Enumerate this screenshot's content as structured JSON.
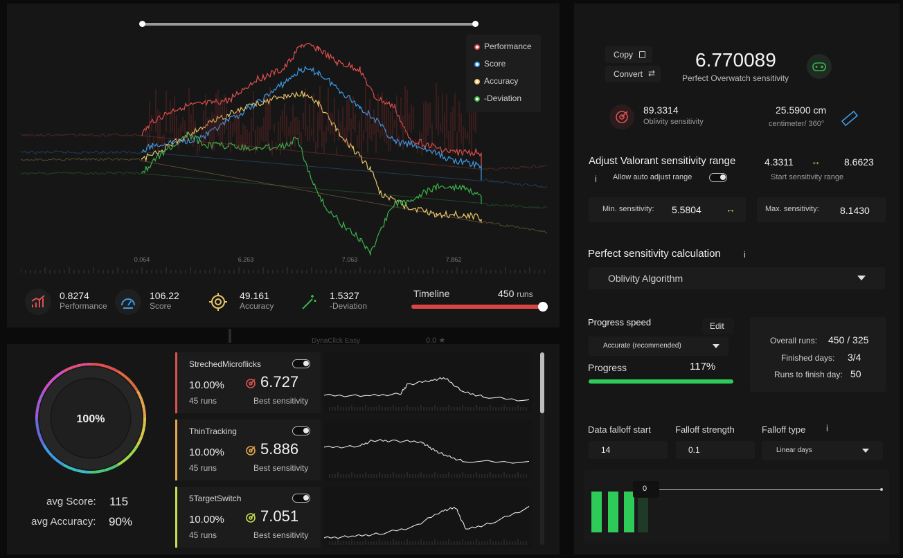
{
  "chart": {
    "legend": [
      {
        "label": "Performance",
        "color": "#e15050"
      },
      {
        "label": "Score",
        "color": "#3d9be6"
      },
      {
        "label": "Accuracy",
        "color": "#e8c56a"
      },
      {
        "label": "-Deviation",
        "color": "#3ab24a"
      }
    ],
    "x_ticks": [
      "0.064",
      "6.263",
      "7.063",
      "7.862"
    ]
  },
  "stats": [
    {
      "value": "0.8274",
      "label": "Performance",
      "icon": "bar-chart-icon",
      "color": "#e15050"
    },
    {
      "value": "106.22",
      "label": "Score",
      "icon": "gauge-icon",
      "color": "#3d9be6"
    },
    {
      "value": "49.161",
      "label": "Accuracy",
      "icon": "target-icon",
      "color": "#e8c56a"
    },
    {
      "value": "1.5327",
      "label": "-Deviation",
      "icon": "wand-icon",
      "color": "#3ab24a"
    }
  ],
  "timeline": {
    "label": "Timeline",
    "runs_value": "450",
    "runs_unit": "runs",
    "fill": 1.0
  },
  "ghost_row": {
    "label": "DynaClick Easy",
    "value": "0.0 ★"
  },
  "summary": {
    "ring_percent": "100%",
    "avg_score_label": "avg Score:",
    "avg_score": "115",
    "avg_accuracy_label": "avg Accuracy:",
    "avg_accuracy": "90%"
  },
  "scenarios": [
    {
      "name": "StrechedMicroflicks",
      "percent": "10.00%",
      "runs": "45 runs",
      "sens": "6.727",
      "sens_label": "Best sensitivity",
      "color": "#d9534f"
    },
    {
      "name": "ThinTracking",
      "percent": "10.00%",
      "runs": "45 runs",
      "sens": "5.886",
      "sens_label": "Best sensitivity",
      "color": "#e8a54d"
    },
    {
      "name": "5TargetSwitch",
      "percent": "10.00%",
      "runs": "45 runs",
      "sens": "7.051",
      "sens_label": "Best sensitivity",
      "color": "#c8e04d"
    }
  ],
  "right": {
    "copy_label": "Copy",
    "convert_label": "Convert",
    "main_sens": "6.770089",
    "main_sens_label": "Perfect Overwatch sensitivity",
    "oblivity_value": "89.3314",
    "oblivity_label": "Oblivity sensitivity",
    "cm_value": "25.5900 cm",
    "cm_label": "centimeter/ 360°",
    "adjust_title": "Adjust Valorant sensitivity range",
    "info": "i",
    "auto_adjust_label": "Allow auto adjust range",
    "range_start": "4.3311",
    "range_end": "8.6623",
    "range_label": "Start sensitivity range",
    "min_label": "Min. sensitivity:",
    "min_value": "5.5804",
    "max_label": "Max. sensitivity:",
    "max_value": "8.1430",
    "calc_title": "Perfect sensitivity calculation",
    "algorithm": "Oblivity Algorithm",
    "progress_speed_label": "Progress speed",
    "edit_label": "Edit",
    "speed_value": "Accurate (recommended)",
    "progress_label": "Progress",
    "progress_value": "117%",
    "progress_fill": 1.0,
    "overall_runs_label": "Overall runs:",
    "overall_runs": "450 / 325",
    "finished_days_label": "Finished days:",
    "finished_days": "3/4",
    "runs_to_finish_label": "Runs to finish day:",
    "runs_to_finish": "50",
    "falloff_start_label": "Data falloff start",
    "falloff_start": "14",
    "falloff_strength_label": "Falloff strength",
    "falloff_strength": "0.1",
    "falloff_type_label": "Falloff type",
    "falloff_type": "Linear days",
    "falloff_chart_zero": "0"
  }
}
